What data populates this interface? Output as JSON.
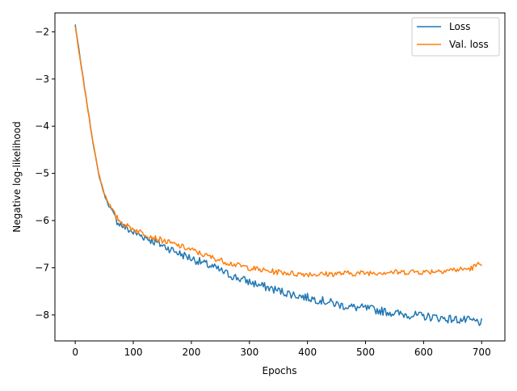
{
  "chart_data": {
    "type": "line",
    "title": "",
    "xlabel": "Epochs",
    "ylabel": "Negative log-likelihood",
    "xlim": [
      -35,
      740
    ],
    "ylim": [
      -8.55,
      -1.6
    ],
    "x_ticks": [
      0,
      100,
      200,
      300,
      400,
      500,
      600,
      700
    ],
    "y_ticks": [
      -2,
      -3,
      -4,
      -5,
      -6,
      -7,
      -8
    ],
    "x_tick_labels": [
      "0",
      "100",
      "200",
      "300",
      "400",
      "500",
      "600",
      "700"
    ],
    "y_tick_labels": [
      "−2",
      "−3",
      "−4",
      "−5",
      "−6",
      "−7",
      "−8"
    ],
    "grid": false,
    "legend_position": "top-right",
    "series": [
      {
        "name": "Loss",
        "color": "#1f77b4",
        "x": [
          0,
          10,
          20,
          30,
          40,
          50,
          60,
          70,
          80,
          90,
          100,
          120,
          140,
          160,
          180,
          200,
          220,
          240,
          260,
          280,
          300,
          320,
          340,
          360,
          380,
          400,
          420,
          440,
          460,
          480,
          500,
          520,
          540,
          560,
          580,
          600,
          620,
          640,
          660,
          680,
          700
        ],
        "y": [
          -1.85,
          -2.7,
          -3.5,
          -4.3,
          -5.0,
          -5.45,
          -5.75,
          -5.98,
          -6.1,
          -6.18,
          -6.25,
          -6.35,
          -6.47,
          -6.58,
          -6.7,
          -6.8,
          -6.9,
          -7.0,
          -7.12,
          -7.22,
          -7.3,
          -7.38,
          -7.45,
          -7.52,
          -7.58,
          -7.63,
          -7.68,
          -7.74,
          -7.8,
          -7.84,
          -7.86,
          -7.9,
          -7.94,
          -7.98,
          -8.0,
          -8.03,
          -8.05,
          -8.08,
          -8.1,
          -8.12,
          -8.16
        ]
      },
      {
        "name": "Val. loss",
        "color": "#ff7f0e",
        "x": [
          0,
          10,
          20,
          30,
          40,
          50,
          60,
          70,
          80,
          90,
          100,
          120,
          140,
          160,
          180,
          200,
          220,
          240,
          260,
          280,
          300,
          320,
          340,
          360,
          380,
          400,
          420,
          440,
          460,
          480,
          500,
          520,
          540,
          560,
          580,
          600,
          620,
          640,
          660,
          680,
          700
        ],
        "y": [
          -1.9,
          -2.72,
          -3.52,
          -4.3,
          -4.98,
          -5.42,
          -5.7,
          -5.92,
          -6.04,
          -6.12,
          -6.18,
          -6.28,
          -6.38,
          -6.46,
          -6.54,
          -6.62,
          -6.72,
          -6.8,
          -6.88,
          -6.95,
          -7.0,
          -7.05,
          -7.08,
          -7.1,
          -7.13,
          -7.13,
          -7.14,
          -7.13,
          -7.12,
          -7.12,
          -7.11,
          -7.1,
          -7.09,
          -7.1,
          -7.08,
          -7.09,
          -7.07,
          -7.05,
          -7.04,
          -7.02,
          -6.9
        ]
      }
    ]
  }
}
